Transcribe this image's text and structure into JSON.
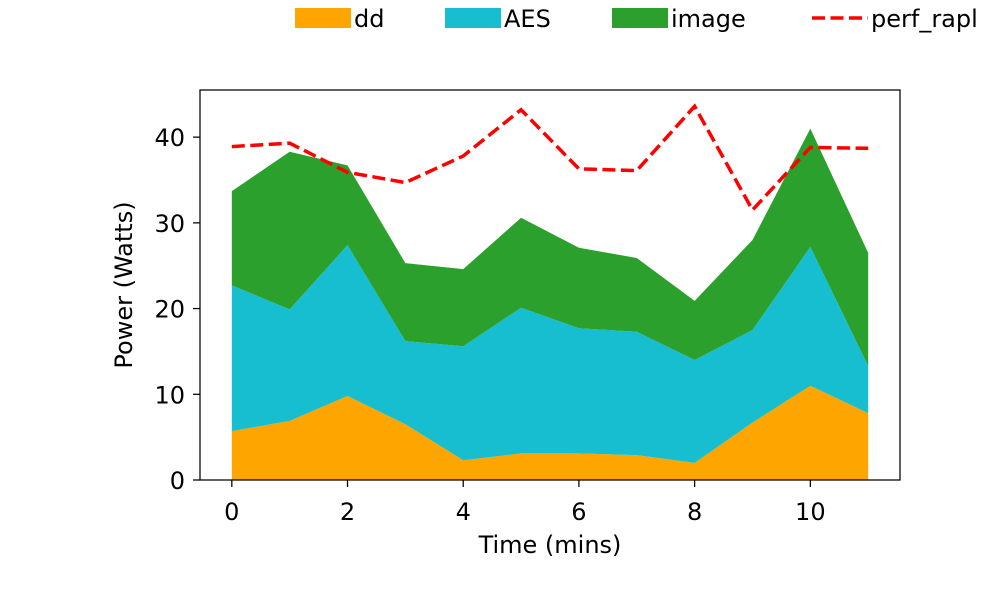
{
  "chart_data": {
    "type": "area",
    "title": "",
    "xlabel": "Time (mins)",
    "ylabel": "Power (Watts)",
    "x": [
      0,
      1,
      2,
      3,
      4,
      5,
      6,
      7,
      8,
      9,
      10,
      11
    ],
    "xlim": [
      -0.55,
      11.55
    ],
    "ylim": [
      0,
      45.5
    ],
    "xticks": [
      0,
      2,
      4,
      6,
      8,
      10
    ],
    "yticks": [
      0,
      10,
      20,
      30,
      40
    ],
    "grid": false,
    "legend": {
      "placement": "top, outside plot area"
    },
    "stacked_series": [
      {
        "name": "dd",
        "color": "#ffa500",
        "values": [
          5.7,
          6.9,
          9.8,
          6.5,
          2.3,
          3.1,
          3.1,
          2.9,
          2.0,
          6.7,
          11.0,
          7.8
        ]
      },
      {
        "name": "AES",
        "color": "#17becf",
        "values": [
          17.0,
          13.0,
          17.6,
          9.7,
          13.3,
          17.0,
          14.6,
          14.4,
          12.0,
          10.8,
          16.2,
          5.5
        ]
      },
      {
        "name": "image",
        "color": "#2ca02c",
        "values": [
          11.0,
          18.4,
          9.3,
          9.1,
          9.0,
          10.5,
          9.4,
          8.6,
          6.9,
          10.5,
          13.8,
          13.2
        ]
      }
    ],
    "line_series": [
      {
        "name": "perf_rapl",
        "color": "#ff0000",
        "style": "dashed",
        "values": [
          38.9,
          39.3,
          35.9,
          34.7,
          37.8,
          43.2,
          36.3,
          36.1,
          43.6,
          31.5,
          38.8,
          38.7
        ]
      }
    ]
  }
}
